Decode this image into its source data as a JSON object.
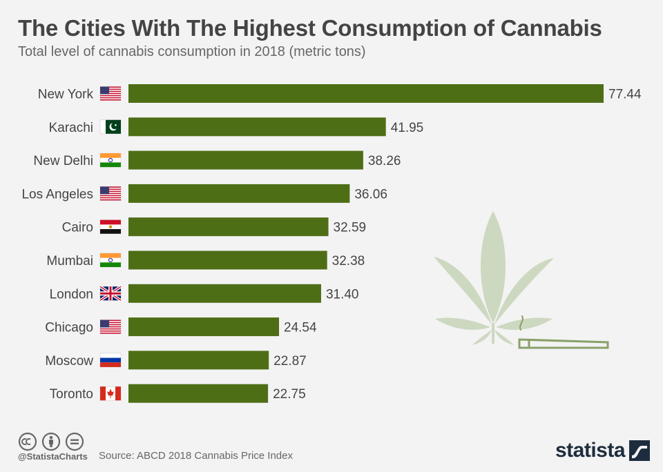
{
  "header": {
    "title": "The Cities With The Highest Consumption of Cannabis",
    "subtitle": "Total level of cannabis consumption in 2018 (metric tons)"
  },
  "chart_data": {
    "type": "bar",
    "orientation": "horizontal",
    "categories": [
      "New York",
      "Karachi",
      "New Delhi",
      "Los Angeles",
      "Cairo",
      "Mumbai",
      "London",
      "Chicago",
      "Moscow",
      "Toronto"
    ],
    "flags": [
      "us-flag-icon",
      "pk-flag-icon",
      "in-flag-icon",
      "us-flag-icon",
      "eg-flag-icon",
      "in-flag-icon",
      "gb-flag-icon",
      "us-flag-icon",
      "ru-flag-icon",
      "ca-flag-icon"
    ],
    "values": [
      77.44,
      41.95,
      38.26,
      36.06,
      32.59,
      32.38,
      31.4,
      24.54,
      22.87,
      22.75
    ],
    "value_labels": [
      "77.44",
      "41.95",
      "38.26",
      "36.06",
      "32.59",
      "32.38",
      "31.40",
      "24.54",
      "22.87",
      "22.75"
    ],
    "xlim": [
      0,
      77.44
    ],
    "grid": false,
    "legend": "none",
    "bar_color": "#4e6e16"
  },
  "decor": {
    "illustration": "cannabis-leaf-and-joint-icon",
    "leaf_color": "#cdd8c0",
    "joint_color": "#8aa06a"
  },
  "footer": {
    "license_icons": [
      "cc-icon",
      "by-icon",
      "nd-icon"
    ],
    "handle": "@StatistaCharts",
    "source": "Source: ABCD 2018 Cannabis Price Index",
    "brand": "statista",
    "brand_icon": "statista-logo-icon",
    "brand_color": "#1e2d3d"
  }
}
